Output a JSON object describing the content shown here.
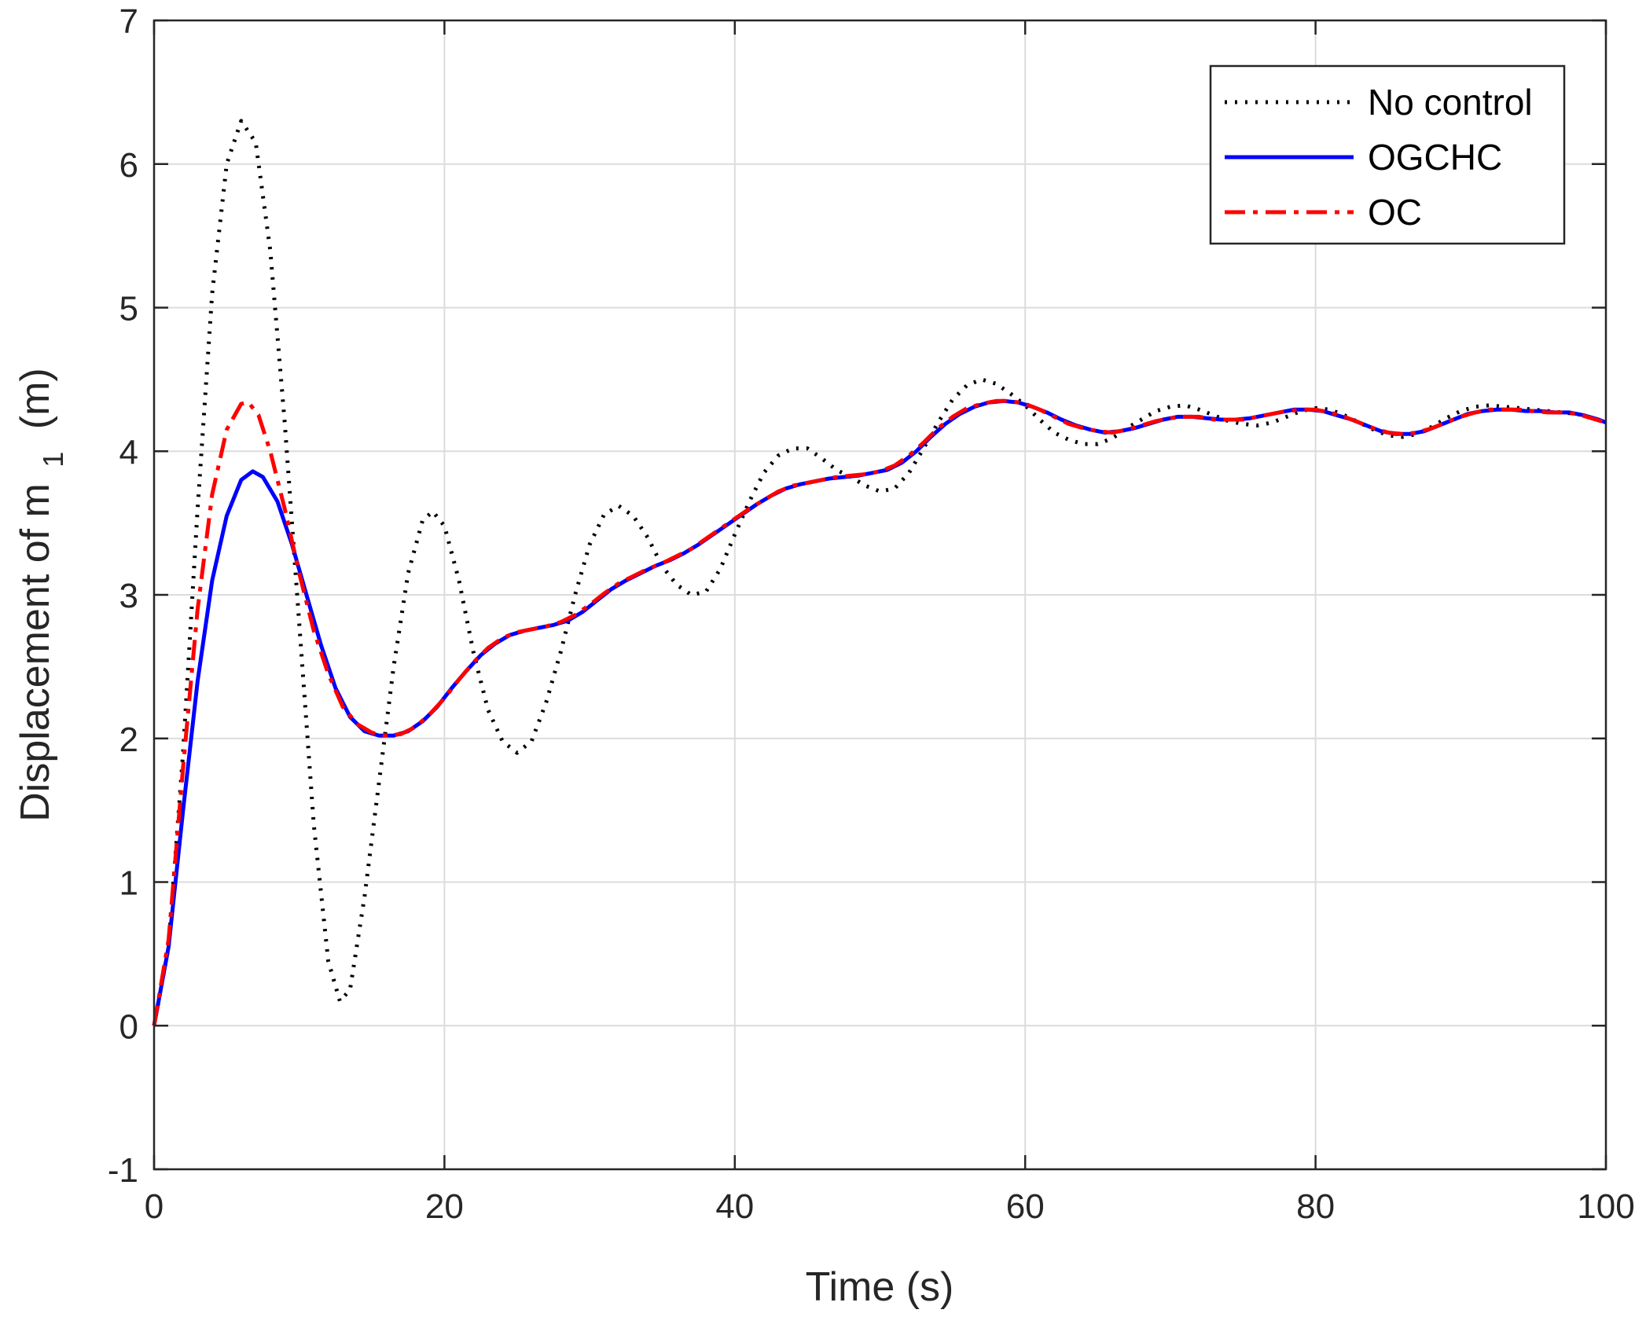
{
  "chart_data": {
    "type": "line",
    "xlabel": "Time (s)",
    "ylabel": "Displacement of m",
    "ylabel_subscript": "1",
    "ylabel_unit": "(m)",
    "xlim": [
      0,
      100
    ],
    "ylim": [
      -1,
      7
    ],
    "xticks": [
      0,
      20,
      40,
      60,
      80,
      100
    ],
    "yticks": [
      -1,
      0,
      1,
      2,
      3,
      4,
      5,
      6,
      7
    ],
    "grid": true,
    "legend_position": "top-right",
    "series": [
      {
        "name": "No control",
        "color": "#000000",
        "style": "dotted",
        "points": [
          [
            0,
            0
          ],
          [
            1,
            0.55
          ],
          [
            2,
            1.9
          ],
          [
            3,
            3.6
          ],
          [
            4,
            5.1
          ],
          [
            5,
            6.0
          ],
          [
            6,
            6.3
          ],
          [
            7,
            6.15
          ],
          [
            8,
            5.4
          ],
          [
            9,
            4.2
          ],
          [
            10,
            2.8
          ],
          [
            11,
            1.4
          ],
          [
            12,
            0.45
          ],
          [
            12.8,
            0.17
          ],
          [
            13.5,
            0.25
          ],
          [
            14.5,
            0.9
          ],
          [
            15.5,
            1.7
          ],
          [
            16.5,
            2.5
          ],
          [
            17.5,
            3.15
          ],
          [
            18.5,
            3.52
          ],
          [
            19.2,
            3.58
          ],
          [
            20,
            3.48
          ],
          [
            21,
            3.1
          ],
          [
            22,
            2.6
          ],
          [
            23,
            2.2
          ],
          [
            24,
            1.98
          ],
          [
            25,
            1.9
          ],
          [
            26,
            1.98
          ],
          [
            27,
            2.25
          ],
          [
            28,
            2.6
          ],
          [
            29,
            3.0
          ],
          [
            30,
            3.35
          ],
          [
            31,
            3.56
          ],
          [
            32,
            3.62
          ],
          [
            33,
            3.55
          ],
          [
            34,
            3.4
          ],
          [
            35,
            3.2
          ],
          [
            36,
            3.07
          ],
          [
            37,
            3.0
          ],
          [
            38,
            3.02
          ],
          [
            39,
            3.18
          ],
          [
            40,
            3.42
          ],
          [
            41,
            3.65
          ],
          [
            42,
            3.85
          ],
          [
            43,
            3.97
          ],
          [
            44,
            4.02
          ],
          [
            45,
            4.02
          ],
          [
            46,
            3.95
          ],
          [
            47,
            3.87
          ],
          [
            48,
            3.82
          ],
          [
            49,
            3.76
          ],
          [
            50,
            3.72
          ],
          [
            51,
            3.74
          ],
          [
            52,
            3.85
          ],
          [
            53,
            4.02
          ],
          [
            54,
            4.2
          ],
          [
            55,
            4.36
          ],
          [
            56,
            4.46
          ],
          [
            57,
            4.5
          ],
          [
            58,
            4.47
          ],
          [
            59,
            4.4
          ],
          [
            60,
            4.32
          ],
          [
            61,
            4.22
          ],
          [
            62,
            4.13
          ],
          [
            63,
            4.08
          ],
          [
            64,
            4.05
          ],
          [
            65,
            4.05
          ],
          [
            66,
            4.09
          ],
          [
            67,
            4.16
          ],
          [
            68,
            4.22
          ],
          [
            69,
            4.28
          ],
          [
            70,
            4.31
          ],
          [
            71,
            4.32
          ],
          [
            72,
            4.29
          ],
          [
            73,
            4.25
          ],
          [
            74,
            4.21
          ],
          [
            75,
            4.19
          ],
          [
            76,
            4.18
          ],
          [
            77,
            4.2
          ],
          [
            78,
            4.24
          ],
          [
            79,
            4.28
          ],
          [
            80,
            4.3
          ],
          [
            81,
            4.29
          ],
          [
            82,
            4.25
          ],
          [
            83,
            4.2
          ],
          [
            84,
            4.15
          ],
          [
            85,
            4.11
          ],
          [
            86,
            4.1
          ],
          [
            87,
            4.12
          ],
          [
            88,
            4.17
          ],
          [
            89,
            4.23
          ],
          [
            90,
            4.28
          ],
          [
            91,
            4.31
          ],
          [
            92,
            4.32
          ],
          [
            93,
            4.31
          ],
          [
            94,
            4.3
          ],
          [
            95,
            4.29
          ],
          [
            96,
            4.28
          ],
          [
            97,
            4.27
          ],
          [
            98,
            4.26
          ],
          [
            99,
            4.23
          ],
          [
            100,
            4.2
          ]
        ]
      },
      {
        "name": "OGCHC",
        "color": "#0000ff",
        "style": "solid",
        "points": [
          [
            0,
            0
          ],
          [
            1,
            0.55
          ],
          [
            2,
            1.5
          ],
          [
            3,
            2.4
          ],
          [
            4,
            3.1
          ],
          [
            5,
            3.55
          ],
          [
            6,
            3.8
          ],
          [
            6.8,
            3.86
          ],
          [
            7.5,
            3.82
          ],
          [
            8.5,
            3.65
          ],
          [
            9.5,
            3.35
          ],
          [
            10.5,
            3.0
          ],
          [
            11.5,
            2.65
          ],
          [
            12.5,
            2.35
          ],
          [
            13.5,
            2.15
          ],
          [
            14.5,
            2.05
          ],
          [
            15.5,
            2.02
          ],
          [
            16.5,
            2.02
          ],
          [
            17.5,
            2.05
          ],
          [
            18.5,
            2.12
          ],
          [
            19.5,
            2.22
          ],
          [
            20.5,
            2.35
          ],
          [
            21.5,
            2.47
          ],
          [
            22.5,
            2.58
          ],
          [
            23.5,
            2.66
          ],
          [
            24.5,
            2.72
          ],
          [
            25.5,
            2.75
          ],
          [
            26.5,
            2.77
          ],
          [
            27.5,
            2.79
          ],
          [
            28.5,
            2.82
          ],
          [
            29.5,
            2.88
          ],
          [
            30.5,
            2.96
          ],
          [
            31.5,
            3.04
          ],
          [
            32.5,
            3.1
          ],
          [
            33.5,
            3.15
          ],
          [
            34.5,
            3.2
          ],
          [
            35.5,
            3.24
          ],
          [
            36.5,
            3.29
          ],
          [
            37.5,
            3.35
          ],
          [
            38.5,
            3.42
          ],
          [
            39.5,
            3.49
          ],
          [
            40.5,
            3.56
          ],
          [
            41.5,
            3.63
          ],
          [
            42.5,
            3.69
          ],
          [
            43.5,
            3.74
          ],
          [
            44.5,
            3.77
          ],
          [
            45.5,
            3.79
          ],
          [
            46.5,
            3.81
          ],
          [
            47.5,
            3.82
          ],
          [
            48.5,
            3.83
          ],
          [
            49.5,
            3.85
          ],
          [
            50.5,
            3.87
          ],
          [
            51.5,
            3.92
          ],
          [
            52.5,
            4.0
          ],
          [
            53.5,
            4.1
          ],
          [
            54.5,
            4.19
          ],
          [
            55.5,
            4.26
          ],
          [
            56.5,
            4.31
          ],
          [
            57.5,
            4.34
          ],
          [
            58.5,
            4.35
          ],
          [
            59.5,
            4.34
          ],
          [
            60.5,
            4.31
          ],
          [
            61.5,
            4.27
          ],
          [
            62.5,
            4.22
          ],
          [
            63.5,
            4.18
          ],
          [
            64.5,
            4.15
          ],
          [
            65.5,
            4.13
          ],
          [
            66.5,
            4.14
          ],
          [
            67.5,
            4.16
          ],
          [
            68.5,
            4.19
          ],
          [
            69.5,
            4.22
          ],
          [
            70.5,
            4.24
          ],
          [
            71.5,
            4.24
          ],
          [
            72.5,
            4.23
          ],
          [
            73.5,
            4.22
          ],
          [
            74.5,
            4.22
          ],
          [
            75.5,
            4.23
          ],
          [
            76.5,
            4.25
          ],
          [
            77.5,
            4.27
          ],
          [
            78.5,
            4.29
          ],
          [
            79.5,
            4.29
          ],
          [
            80.5,
            4.28
          ],
          [
            81.5,
            4.25
          ],
          [
            82.5,
            4.22
          ],
          [
            83.5,
            4.18
          ],
          [
            84.5,
            4.14
          ],
          [
            85.5,
            4.12
          ],
          [
            86.5,
            4.12
          ],
          [
            87.5,
            4.14
          ],
          [
            88.5,
            4.18
          ],
          [
            89.5,
            4.22
          ],
          [
            90.5,
            4.26
          ],
          [
            91.5,
            4.28
          ],
          [
            92.5,
            4.29
          ],
          [
            93.5,
            4.29
          ],
          [
            94.5,
            4.28
          ],
          [
            95.5,
            4.28
          ],
          [
            96.5,
            4.27
          ],
          [
            97.5,
            4.27
          ],
          [
            98.5,
            4.25
          ],
          [
            99.5,
            4.22
          ],
          [
            100,
            4.2
          ]
        ]
      },
      {
        "name": "OC",
        "color": "#ff0000",
        "style": "dashdot",
        "points": [
          [
            0,
            0
          ],
          [
            1,
            0.6
          ],
          [
            2,
            1.8
          ],
          [
            3,
            2.9
          ],
          [
            4,
            3.7
          ],
          [
            5,
            4.15
          ],
          [
            6,
            4.33
          ],
          [
            6.5,
            4.34
          ],
          [
            7.2,
            4.25
          ],
          [
            8,
            4.0
          ],
          [
            9,
            3.6
          ],
          [
            10,
            3.15
          ],
          [
            11,
            2.75
          ],
          [
            12,
            2.45
          ],
          [
            13,
            2.22
          ],
          [
            14,
            2.1
          ],
          [
            15,
            2.04
          ],
          [
            16,
            2.02
          ],
          [
            17,
            2.03
          ],
          [
            18,
            2.08
          ],
          [
            19,
            2.17
          ],
          [
            20,
            2.28
          ],
          [
            21,
            2.41
          ],
          [
            22,
            2.53
          ],
          [
            23,
            2.63
          ],
          [
            24,
            2.7
          ],
          [
            25,
            2.74
          ],
          [
            26,
            2.76
          ],
          [
            27,
            2.78
          ],
          [
            28,
            2.81
          ],
          [
            29,
            2.86
          ],
          [
            30,
            2.93
          ],
          [
            31,
            3.01
          ],
          [
            32,
            3.08
          ],
          [
            33,
            3.13
          ],
          [
            34,
            3.18
          ],
          [
            35,
            3.22
          ],
          [
            36,
            3.27
          ],
          [
            37,
            3.32
          ],
          [
            38,
            3.39
          ],
          [
            39,
            3.46
          ],
          [
            40,
            3.53
          ],
          [
            41,
            3.6
          ],
          [
            42,
            3.66
          ],
          [
            43,
            3.72
          ],
          [
            44,
            3.76
          ],
          [
            45,
            3.78
          ],
          [
            46,
            3.8
          ],
          [
            47,
            3.82
          ],
          [
            48,
            3.83
          ],
          [
            49,
            3.84
          ],
          [
            50,
            3.86
          ],
          [
            51,
            3.9
          ],
          [
            52,
            3.97
          ],
          [
            53,
            4.06
          ],
          [
            54,
            4.16
          ],
          [
            55,
            4.24
          ],
          [
            56,
            4.3
          ],
          [
            57,
            4.33
          ],
          [
            58,
            4.35
          ],
          [
            59,
            4.35
          ],
          [
            60,
            4.33
          ],
          [
            61,
            4.29
          ],
          [
            62,
            4.24
          ],
          [
            63,
            4.19
          ],
          [
            64,
            4.16
          ],
          [
            65,
            4.14
          ],
          [
            66,
            4.13
          ],
          [
            67,
            4.15
          ],
          [
            68,
            4.18
          ],
          [
            69,
            4.21
          ],
          [
            70,
            4.23
          ],
          [
            71,
            4.24
          ],
          [
            72,
            4.24
          ],
          [
            73,
            4.22
          ],
          [
            74,
            4.22
          ],
          [
            75,
            4.22
          ],
          [
            76,
            4.24
          ],
          [
            77,
            4.26
          ],
          [
            78,
            4.28
          ],
          [
            79,
            4.29
          ],
          [
            80,
            4.29
          ],
          [
            81,
            4.27
          ],
          [
            82,
            4.24
          ],
          [
            83,
            4.2
          ],
          [
            84,
            4.16
          ],
          [
            85,
            4.13
          ],
          [
            86,
            4.12
          ],
          [
            87,
            4.13
          ],
          [
            88,
            4.16
          ],
          [
            89,
            4.2
          ],
          [
            90,
            4.24
          ],
          [
            91,
            4.27
          ],
          [
            92,
            4.29
          ],
          [
            93,
            4.29
          ],
          [
            94,
            4.29
          ],
          [
            95,
            4.28
          ],
          [
            96,
            4.27
          ],
          [
            97,
            4.27
          ],
          [
            98,
            4.26
          ],
          [
            99,
            4.23
          ],
          [
            100,
            4.2
          ]
        ]
      }
    ]
  }
}
